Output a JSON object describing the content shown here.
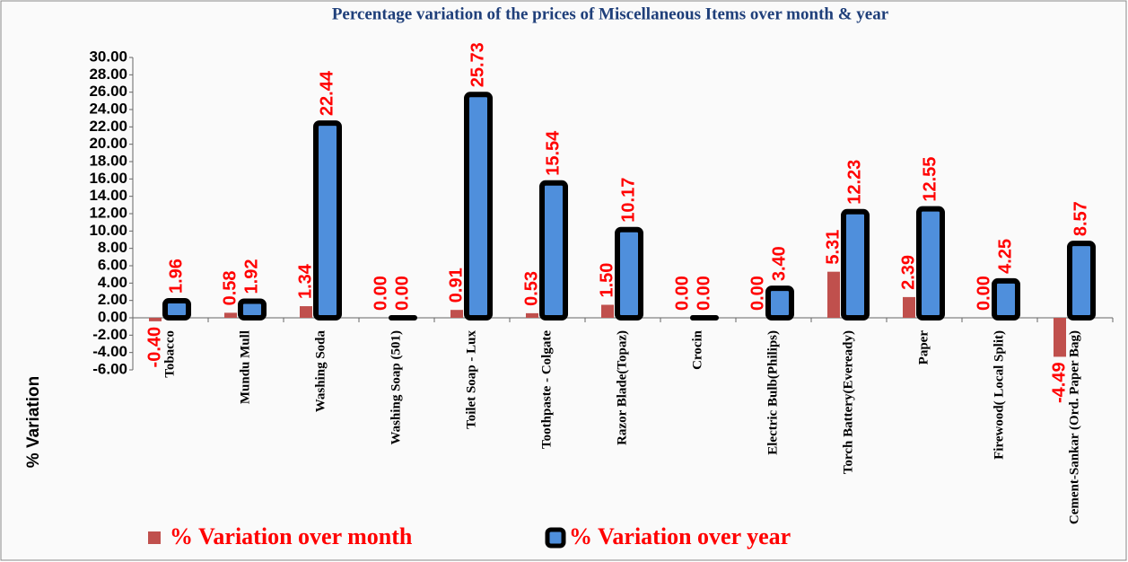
{
  "chart_data": {
    "type": "bar",
    "title": "Percentage variation of the prices of Miscellaneous Items over month & year",
    "y_label": "% Variation",
    "categories": [
      "Tobacco",
      "Mundu Mull",
      "Washing Soda",
      "Washing Soap (501)",
      "Toilet Soap - Lux",
      "Toothpaste - Colgate",
      "Razor Blade(Topaz)",
      "Crocin",
      "Electric Bulb(Philips)",
      "Torch Battery(Eveready)",
      "Paper",
      "Firewood( Local Split)",
      "Cement-Sankar (Ord. Paper Bag)"
    ],
    "series": [
      {
        "name": "%  Variation over month",
        "color": "#c0504d",
        "values": [
          -0.4,
          0.58,
          1.34,
          0.0,
          0.91,
          0.53,
          1.5,
          0.0,
          0.0,
          5.31,
          2.39,
          0.0,
          -4.49
        ],
        "value_labels": [
          "-0.40",
          "0.58",
          "1.34",
          "0.00",
          "0.91",
          "0.53",
          "1.50",
          "0.00",
          "0.00",
          "5.31",
          "2.39",
          "0.00",
          "-4.49"
        ]
      },
      {
        "name": "%  Variation over year",
        "color": "#4f8fdc",
        "values": [
          1.96,
          1.92,
          22.44,
          0.0,
          25.73,
          15.54,
          10.17,
          0.0,
          3.4,
          12.23,
          12.55,
          4.25,
          8.57
        ],
        "value_labels": [
          "1.96",
          "1.92",
          "22.44",
          "0.00",
          "25.73",
          "15.54",
          "10.17",
          "0.00",
          "3.40",
          "12.23",
          "12.55",
          "4.25",
          "8.57"
        ]
      }
    ],
    "ylim": [
      -6,
      30
    ],
    "yticks": [
      {
        "value": -6,
        "label": "-6.00"
      },
      {
        "value": -4,
        "label": "-4.00"
      },
      {
        "value": -2,
        "label": "-2.00"
      },
      {
        "value": 0,
        "label": "0.00"
      },
      {
        "value": 2,
        "label": "2.00"
      },
      {
        "value": 4,
        "label": "4.00"
      },
      {
        "value": 6,
        "label": "6.00"
      },
      {
        "value": 8,
        "label": "8.00"
      },
      {
        "value": 10,
        "label": "10.00"
      },
      {
        "value": 12,
        "label": "12.00"
      },
      {
        "value": 14,
        "label": "14.00"
      },
      {
        "value": 16,
        "label": "16.00"
      },
      {
        "value": 18,
        "label": "18.00"
      },
      {
        "value": 20,
        "label": "20.00"
      },
      {
        "value": 22,
        "label": "22.00"
      },
      {
        "value": 24,
        "label": "24.00"
      },
      {
        "value": 26,
        "label": "26.00"
      },
      {
        "value": 28,
        "label": "28.00"
      },
      {
        "value": 30,
        "label": "30.00"
      }
    ],
    "grid": false
  }
}
